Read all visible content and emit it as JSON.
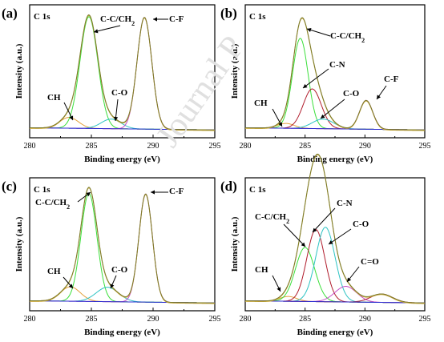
{
  "chart_data": [
    {
      "type": "line",
      "panel": "(a)",
      "corner_label": "C 1s",
      "xlabel": "Binding energy (eV)",
      "ylabel": "Intensity (a.u.)",
      "xlim": [
        295,
        280
      ],
      "xticks": [
        280,
        285,
        290,
        295
      ],
      "peaks": [
        {
          "label": "CH",
          "center": 283.2,
          "height": 0.09,
          "sigma": 0.75,
          "color": "#e3a13d"
        },
        {
          "label": "C-C/CH2",
          "center": 284.8,
          "height": 0.93,
          "sigma": 0.72,
          "color": "#3adf3a"
        },
        {
          "label": "C-O",
          "center": 286.6,
          "height": 0.08,
          "sigma": 0.8,
          "color": "#2cc3c3"
        },
        {
          "label": "C-F",
          "center": 289.3,
          "height": 0.93,
          "sigma": 0.6,
          "color": "#c54bc5"
        }
      ],
      "annotations": [
        {
          "text": "CH",
          "target": "CH"
        },
        {
          "text": "C-C/CH",
          "sub": "2",
          "target": "C-C/CH2"
        },
        {
          "text": "C-O",
          "target": "C-O"
        },
        {
          "text": "C-F",
          "target": "C-F"
        }
      ]
    },
    {
      "type": "line",
      "panel": "(b)",
      "corner_label": "C 1s",
      "xlabel": "Binding energy (eV)",
      "ylabel": "Intensity (a.u.)",
      "xlim": [
        295,
        280
      ],
      "xticks": [
        280,
        285,
        290,
        295
      ],
      "peaks": [
        {
          "label": "CH",
          "center": 283.4,
          "height": 0.04,
          "sigma": 0.7,
          "color": "#e3a13d"
        },
        {
          "label": "C-C/CH2",
          "center": 284.6,
          "height": 0.75,
          "sigma": 0.65,
          "color": "#3adf3a"
        },
        {
          "label": "C-N",
          "center": 285.6,
          "height": 0.33,
          "sigma": 0.75,
          "color": "#b01c2c"
        },
        {
          "label": "C-O",
          "center": 286.5,
          "height": 0.08,
          "sigma": 0.9,
          "color": "#2cc3c3"
        },
        {
          "label": "C-F",
          "center": 290.1,
          "height": 0.24,
          "sigma": 0.55,
          "color": "#c54bc5"
        }
      ],
      "annotations": [
        {
          "text": "CH",
          "target": "CH"
        },
        {
          "text": "C-C/CH",
          "sub": "2",
          "target": "C-C/CH2"
        },
        {
          "text": "C-N",
          "target": "C-N"
        },
        {
          "text": "C-O",
          "target": "C-O"
        },
        {
          "text": "C-F",
          "target": "C-F"
        }
      ]
    },
    {
      "type": "line",
      "panel": "(c)",
      "corner_label": "C 1s",
      "xlabel": "Binding energy (eV)",
      "ylabel": "Intensity (a.u.)",
      "xlim": [
        295,
        280
      ],
      "xticks": [
        280,
        285,
        290,
        295
      ],
      "peaks": [
        {
          "label": "CH",
          "center": 283.3,
          "height": 0.12,
          "sigma": 0.8,
          "color": "#e3a13d"
        },
        {
          "label": "C-C/CH2",
          "center": 284.8,
          "height": 0.9,
          "sigma": 0.65,
          "color": "#3adf3a"
        },
        {
          "label": "C-O",
          "center": 286.3,
          "height": 0.12,
          "sigma": 0.9,
          "color": "#2cc3c3"
        },
        {
          "label": "C-F",
          "center": 289.4,
          "height": 0.9,
          "sigma": 0.55,
          "color": "#c54bc5"
        }
      ],
      "annotations": [
        {
          "text": "CH",
          "target": "CH"
        },
        {
          "text": "C-C/CH",
          "sub": "2",
          "target": "C-C/CH2"
        },
        {
          "text": "C-O",
          "target": "C-O"
        },
        {
          "text": "C-F",
          "target": "C-F"
        }
      ]
    },
    {
      "type": "line",
      "panel": "(d)",
      "corner_label": "C 1s",
      "xlabel": "Binding energy (eV)",
      "ylabel": "Intensity (a.u.)",
      "xlim": [
        295,
        280
      ],
      "xticks": [
        280,
        285,
        290,
        295
      ],
      "peaks": [
        {
          "label": "CH",
          "center": 283.6,
          "height": 0.04,
          "sigma": 0.7,
          "color": "#e3a13d"
        },
        {
          "label": "C-C/CH2",
          "center": 285.0,
          "height": 0.45,
          "sigma": 0.8,
          "color": "#3adf3a"
        },
        {
          "label": "C-N",
          "center": 285.9,
          "height": 0.6,
          "sigma": 0.75,
          "color": "#b01c2c"
        },
        {
          "label": "C-O",
          "center": 286.7,
          "height": 0.62,
          "sigma": 0.8,
          "color": "#2cc3c3"
        },
        {
          "label": "C=O",
          "center": 288.4,
          "height": 0.13,
          "sigma": 0.9,
          "color": "#c54bc5"
        },
        {
          "label": "",
          "center": 291.4,
          "height": 0.07,
          "sigma": 0.9,
          "color": "#b01c2c"
        }
      ],
      "annotations": [
        {
          "text": "CH",
          "target": "CH"
        },
        {
          "text": "C-C/CH",
          "sub": "2",
          "target": "C-C/CH2"
        },
        {
          "text": "C-N",
          "target": "C-N"
        },
        {
          "text": "C-O",
          "target": "C-O"
        },
        {
          "text": "C=O",
          "target": "C=O"
        }
      ]
    }
  ],
  "colors": {
    "envelope": "#7a7a2a",
    "fit": "#c9a83a",
    "background": "#2b2bd0"
  },
  "watermark": "Journal P"
}
